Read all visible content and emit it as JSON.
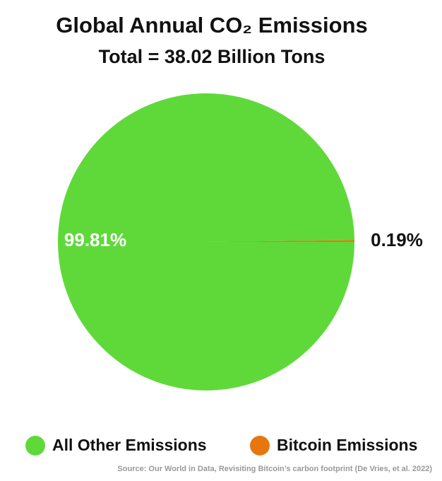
{
  "chart_data": {
    "type": "pie",
    "title": "Global Annual CO₂ Emissions",
    "subtitle": "Total = 38.02 Billion Tons",
    "categories": [
      "All Other Emissions",
      "Bitcoin Emissions"
    ],
    "values": [
      99.81,
      0.19
    ],
    "value_labels": [
      "99.81%",
      "0.19%"
    ],
    "colors": [
      "#5fd93a",
      "#e8760f"
    ],
    "legend": "bottom",
    "source": "Source: Our World in Data, Revisiting Bitcoin’s carbon footprint (De Vries, et al. 2022)"
  }
}
